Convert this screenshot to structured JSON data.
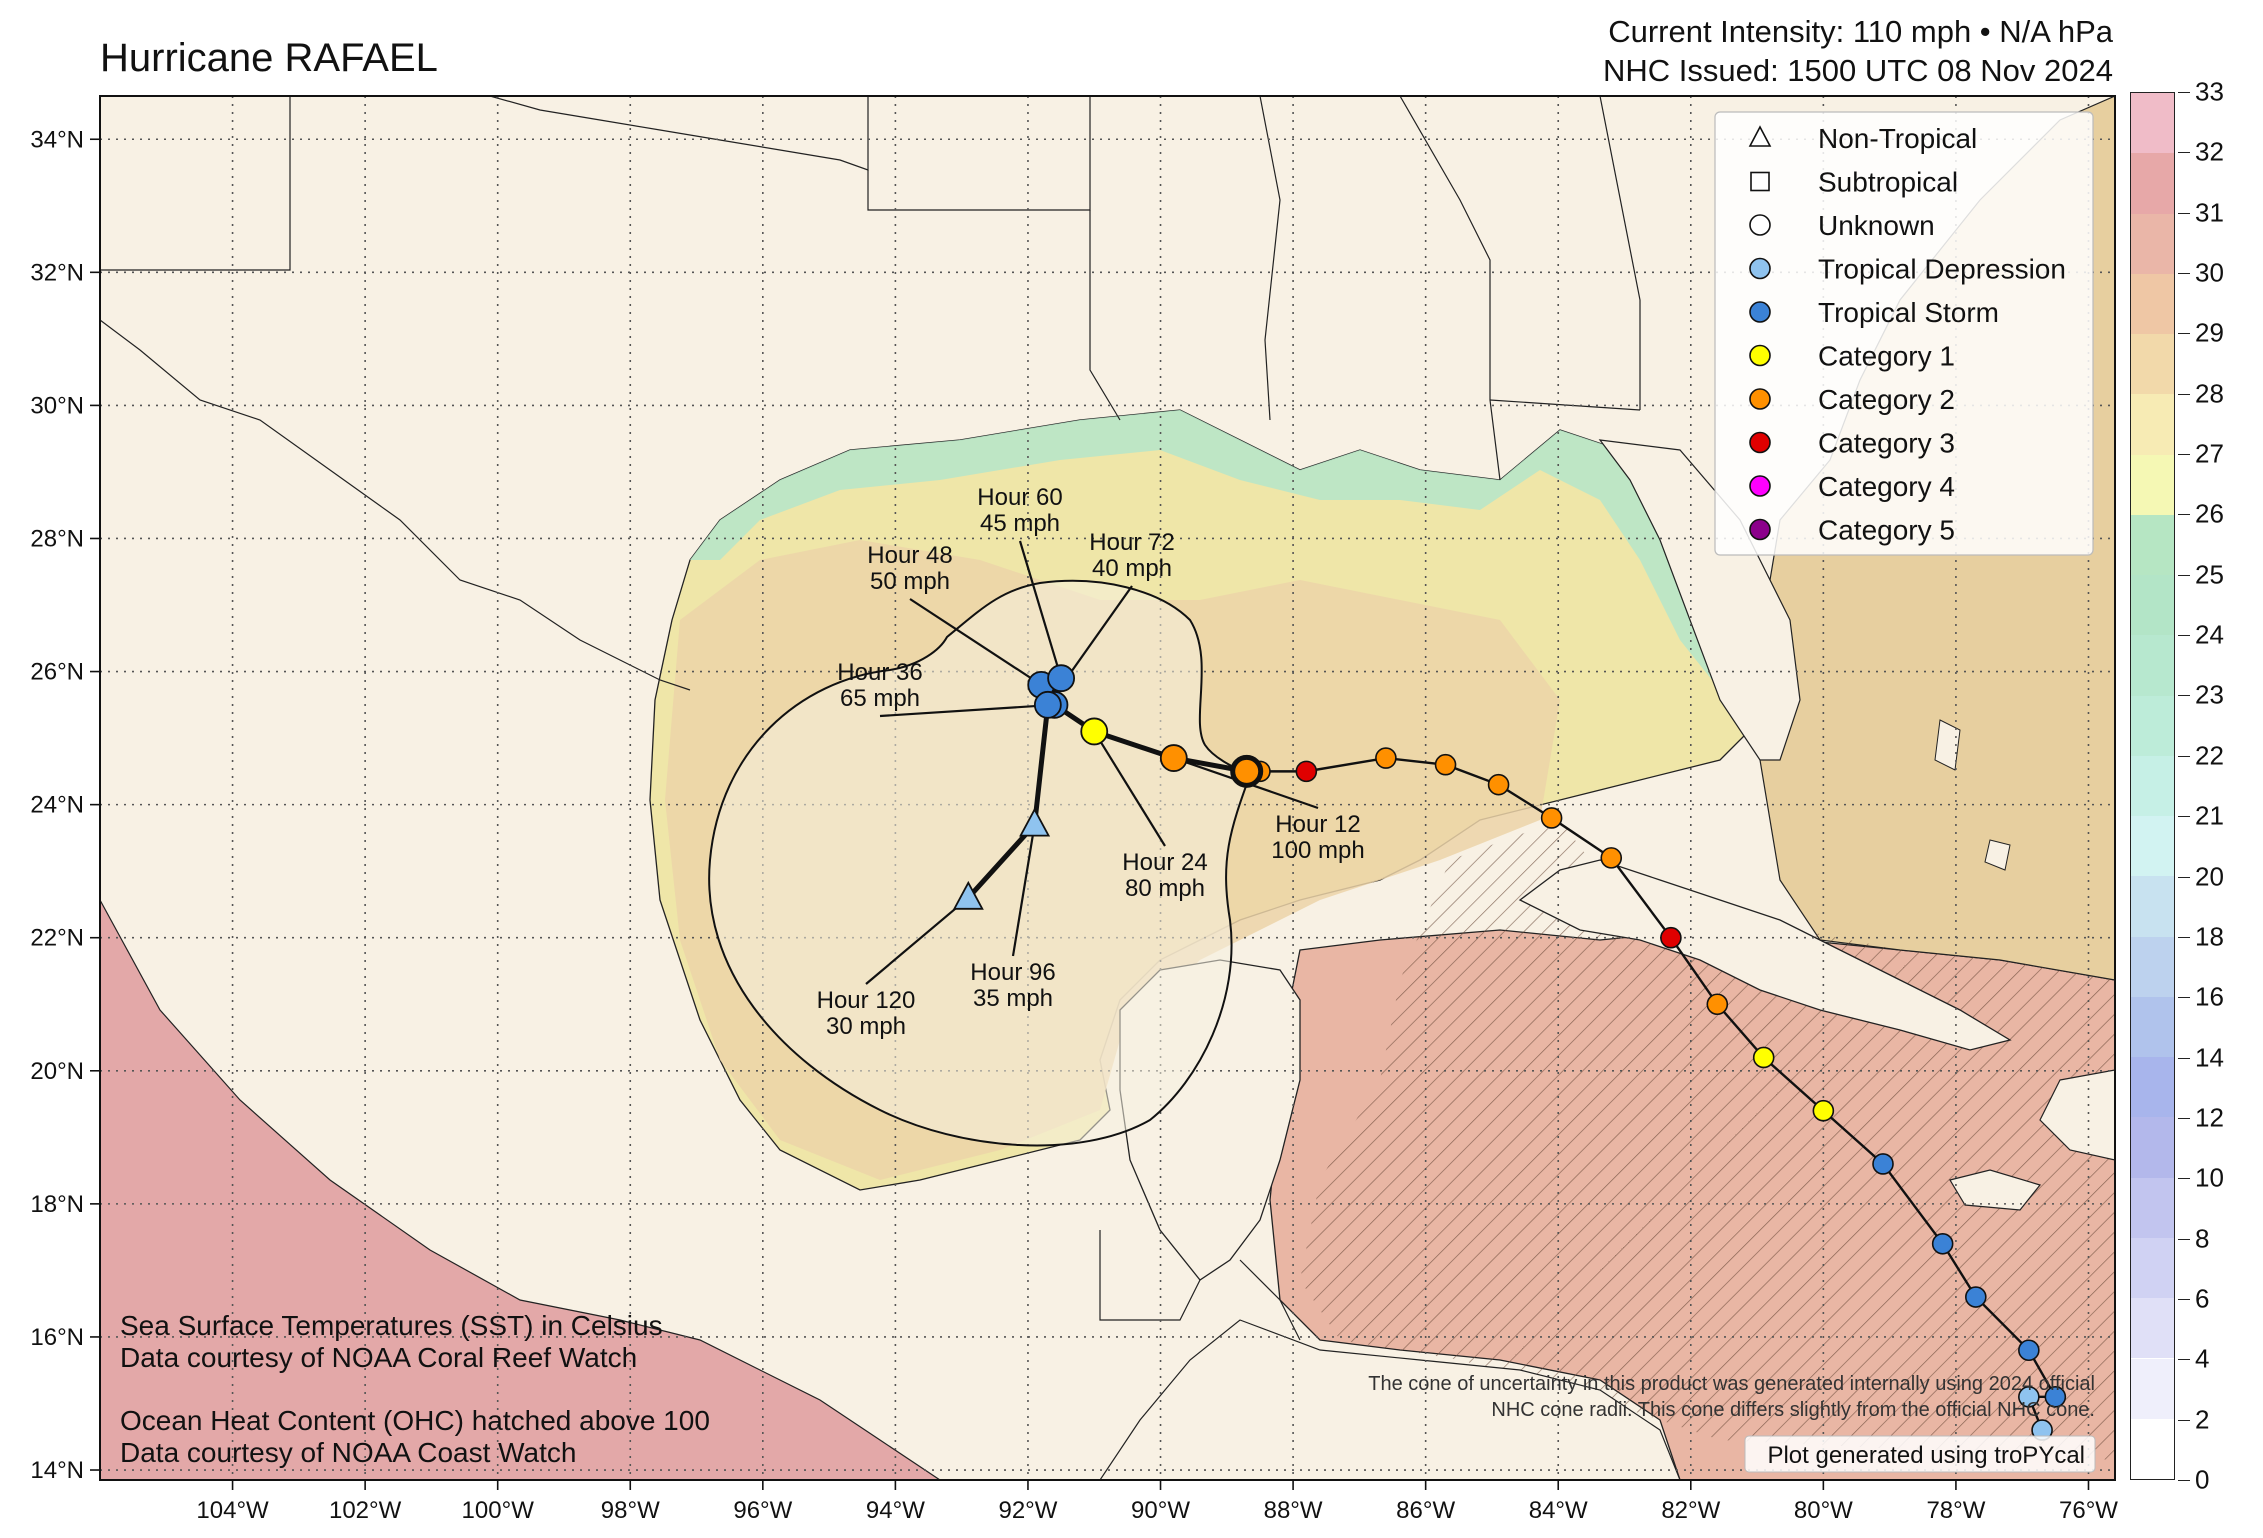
{
  "header": {
    "title": "Hurricane RAFAEL",
    "intensity": "Current Intensity: 110 mph • N/A hPa",
    "issued": "NHC Issued: 1500 UTC 08 Nov 2024"
  },
  "lat_labels": [
    "34°N",
    "32°N",
    "30°N",
    "28°N",
    "26°N",
    "24°N",
    "22°N",
    "20°N",
    "18°N",
    "16°N",
    "14°N"
  ],
  "lat_values": [
    34,
    32,
    30,
    28,
    26,
    24,
    22,
    20,
    18,
    16,
    14
  ],
  "lon_labels": [
    "104°W",
    "102°W",
    "100°W",
    "98°W",
    "96°W",
    "94°W",
    "92°W",
    "90°W",
    "88°W",
    "86°W",
    "84°W",
    "82°W",
    "80°W",
    "78°W",
    "76°W"
  ],
  "lon_values": [
    -104,
    -102,
    -100,
    -98,
    -96,
    -94,
    -92,
    -90,
    -88,
    -86,
    -84,
    -82,
    -80,
    -78,
    -76
  ],
  "legend": [
    {
      "label": "Non-Tropical",
      "shape": "triangle",
      "color": "#ffffff"
    },
    {
      "label": "Subtropical",
      "shape": "square",
      "color": "#ffffff"
    },
    {
      "label": "Unknown",
      "shape": "circle",
      "color": "#ffffff"
    },
    {
      "label": "Tropical Depression",
      "shape": "circle",
      "color": "#8fc3ef"
    },
    {
      "label": "Tropical Storm",
      "shape": "circle",
      "color": "#3b82d6"
    },
    {
      "label": "Category 1",
      "shape": "circle",
      "color": "#ffff00"
    },
    {
      "label": "Category 2",
      "shape": "circle",
      "color": "#ff9000"
    },
    {
      "label": "Category 3",
      "shape": "circle",
      "color": "#e00000"
    },
    {
      "label": "Category 4",
      "shape": "circle",
      "color": "#ff00ff"
    },
    {
      "label": "Category 5",
      "shape": "circle",
      "color": "#8b008b"
    }
  ],
  "colorbar": {
    "ticks": [
      "0",
      "2",
      "4",
      "6",
      "8",
      "10",
      "12",
      "14",
      "16",
      "18",
      "20",
      "21",
      "22",
      "23",
      "24",
      "25",
      "26",
      "27",
      "28",
      "29",
      "30",
      "31",
      "32",
      "33"
    ],
    "colors": [
      "#ffffff",
      "#efeffb",
      "#e0e0f7",
      "#d0d2f3",
      "#c2c5ef",
      "#b3b8eb",
      "#a8b5ec",
      "#b0c3ec",
      "#bdd2ee",
      "#c8e2f0",
      "#d2f3f2",
      "#c6f0e6",
      "#bdecd9",
      "#b7e8cf",
      "#b3e5c7",
      "#b6e6c3",
      "#f5f8b4",
      "#f7ebb4",
      "#f2d9aa",
      "#efc7a5",
      "#eab6a8",
      "#e7a8a8",
      "#f0bcc8",
      "#f7d7ee"
    ]
  },
  "past_track": [
    {
      "lon": -76.7,
      "lat": 14.6,
      "cat": "Tropical Depression"
    },
    {
      "lon": -76.9,
      "lat": 15.1,
      "cat": "Tropical Depression"
    },
    {
      "lon": -76.5,
      "lat": 15.1,
      "cat": "Tropical Storm"
    },
    {
      "lon": -76.9,
      "lat": 15.8,
      "cat": "Tropical Storm"
    },
    {
      "lon": -77.7,
      "lat": 16.6,
      "cat": "Tropical Storm"
    },
    {
      "lon": -78.2,
      "lat": 17.4,
      "cat": "Tropical Storm"
    },
    {
      "lon": -79.1,
      "lat": 18.6,
      "cat": "Tropical Storm"
    },
    {
      "lon": -80.0,
      "lat": 19.4,
      "cat": "Category 1"
    },
    {
      "lon": -80.9,
      "lat": 20.2,
      "cat": "Category 1"
    },
    {
      "lon": -81.6,
      "lat": 21.0,
      "cat": "Category 2"
    },
    {
      "lon": -82.3,
      "lat": 22.0,
      "cat": "Category 3"
    },
    {
      "lon": -83.2,
      "lat": 23.2,
      "cat": "Category 2"
    },
    {
      "lon": -84.1,
      "lat": 23.8,
      "cat": "Category 2"
    },
    {
      "lon": -84.9,
      "lat": 24.3,
      "cat": "Category 2"
    },
    {
      "lon": -85.7,
      "lat": 24.6,
      "cat": "Category 2"
    },
    {
      "lon": -86.6,
      "lat": 24.7,
      "cat": "Category 2"
    },
    {
      "lon": -87.8,
      "lat": 24.5,
      "cat": "Category 3"
    },
    {
      "lon": -88.5,
      "lat": 24.5,
      "cat": "Category 2"
    }
  ],
  "current_position": {
    "lon": -88.7,
    "lat": 24.5,
    "cat": "Category 2"
  },
  "forecast": [
    {
      "hour": "Hour 12",
      "wind": "100 mph",
      "lon": -89.8,
      "lat": 24.7,
      "cat": "Category 2",
      "shape": "circle"
    },
    {
      "hour": "Hour 24",
      "wind": "80 mph",
      "lon": -91.0,
      "lat": 25.1,
      "cat": "Category 1",
      "shape": "circle"
    },
    {
      "hour": "Hour 36",
      "wind": "65 mph",
      "lon": -91.6,
      "lat": 25.5,
      "cat": "Tropical Storm",
      "shape": "circle"
    },
    {
      "hour": "Hour 48",
      "wind": "50 mph",
      "lon": -91.8,
      "lat": 25.8,
      "cat": "Tropical Storm",
      "shape": "circle"
    },
    {
      "hour": "Hour 60",
      "wind": "45 mph",
      "lon": -91.5,
      "lat": 25.9,
      "cat": "Tropical Storm",
      "shape": "circle"
    },
    {
      "hour": "Hour 72",
      "wind": "40 mph",
      "lon": -91.7,
      "lat": 25.5,
      "cat": "Tropical Storm",
      "shape": "circle"
    },
    {
      "hour": "Hour 96",
      "wind": "35 mph",
      "lon": -91.9,
      "lat": 23.7,
      "cat": "Non-Tropical",
      "shape": "triangle"
    },
    {
      "hour": "Hour 120",
      "wind": "30 mph",
      "lon": -92.9,
      "lat": 22.6,
      "cat": "Non-Tropical",
      "shape": "triangle"
    }
  ],
  "credits": {
    "sst_line1": "Sea Surface Temperatures (SST) in Celsius",
    "sst_line2": "Data courtesy of NOAA Coral Reef Watch",
    "ohc_line1": "Ocean Heat Content (OHC) hatched above 100",
    "ohc_line2": "Data courtesy of NOAA Coast Watch"
  },
  "disclaimer": {
    "line1": "The cone of uncertainty in this product was generated internally using 2024 official",
    "line2": "NHC cone radii. This cone differs slightly from the official NHC cone."
  },
  "footer_credit": "Plot generated using troPYcal"
}
